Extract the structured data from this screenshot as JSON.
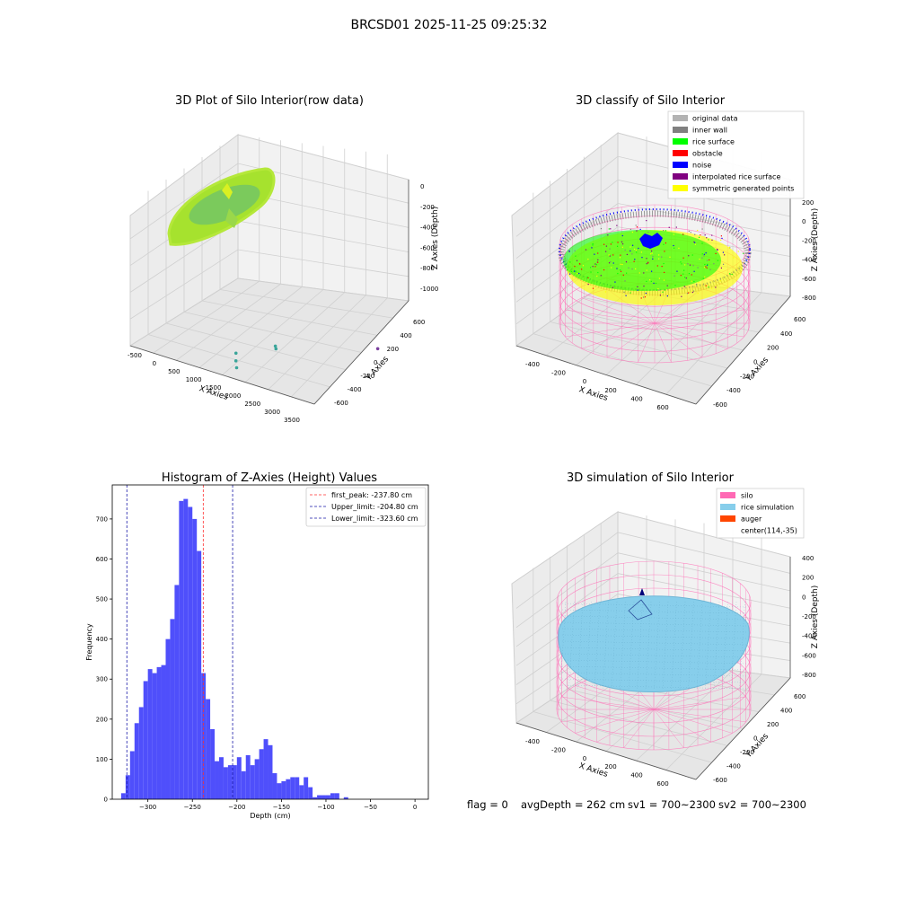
{
  "figure": {
    "suptitle": "BRCSD01 2025-11-25 09:25:32",
    "footer": {
      "flag": "flag = 0",
      "avg_depth": "avgDepth = 262 cm",
      "sv1": "sv1 = 700~2300",
      "sv2": "sv2 = 700~2300"
    }
  },
  "colors": {
    "hist_bar": "#4f4ffb",
    "peak_line": "#ff3030",
    "limit_line": "#1a1aa8",
    "silo_pink": "#ff69b4",
    "rice_sim": "#87ceeb",
    "auger": "#ff4500",
    "pane_left": "#ececec",
    "pane_right": "#f2f2f2",
    "pane_floor": "#e6e6e6",
    "grid": "#d0d0d0"
  },
  "chart_data": [
    {
      "id": "raw",
      "type": "scatter",
      "title": "3D Plot of Silo Interior(row data)",
      "xlabel": "X Axies",
      "ylabel": "Y Axies",
      "zlabel": "Z Axies (Depth)",
      "x_ticks": [
        "-500",
        "0",
        "500",
        "1000",
        "1500",
        "2000",
        "2500",
        "3000",
        "3500"
      ],
      "y_ticks": [
        "-600",
        "-400",
        "-200",
        "0",
        "200",
        "400",
        "600"
      ],
      "z_ticks": [
        "0",
        "-200",
        "-400",
        "-600",
        "-800",
        "-1000"
      ],
      "outlier_points": [
        {
          "x": 1200,
          "y": -250,
          "z": -820
        },
        {
          "x": 1250,
          "y": -280,
          "z": -850
        },
        {
          "x": 1300,
          "y": -300,
          "z": -880
        },
        {
          "x": 1800,
          "y": -100,
          "z": -800
        },
        {
          "x": 1830,
          "y": -110,
          "z": -810
        },
        {
          "x": 3000,
          "y": 500,
          "z": -1050
        }
      ]
    },
    {
      "id": "classify",
      "type": "scatter",
      "title": "3D classify of Silo Interior",
      "xlabel": "X Axies",
      "ylabel": "Y Axies",
      "zlabel": "Z Axies (Depth)",
      "x_ticks": [
        "-400",
        "-200",
        "0",
        "200",
        "400",
        "600"
      ],
      "y_ticks": [
        "-600",
        "-400",
        "-200",
        "0",
        "200",
        "400",
        "600"
      ],
      "z_ticks": [
        "200",
        "0",
        "-200",
        "-400",
        "-600",
        "-800"
      ],
      "legend": [
        {
          "label": "original data",
          "color": "#b3b3b3"
        },
        {
          "label": "inner wall",
          "color": "#808080"
        },
        {
          "label": "rice surface",
          "color": "#00ff00"
        },
        {
          "label": "obstacle",
          "color": "#ff0000"
        },
        {
          "label": "noise",
          "color": "#0000ff"
        },
        {
          "label": "interpolated rice surface",
          "color": "#800080"
        },
        {
          "label": "symmetric generated points",
          "color": "#ffff00"
        }
      ]
    },
    {
      "id": "hist",
      "type": "bar",
      "title": "Histogram of Z-Axies (Height) Values",
      "xlabel": "Depth (cm)",
      "ylabel": "Frequency",
      "xlim": [
        -340,
        15
      ],
      "ylim": [
        0,
        785
      ],
      "x_ticks": [
        -300,
        -250,
        -200,
        -150,
        -100,
        -50,
        0
      ],
      "y_ticks": [
        0,
        100,
        200,
        300,
        400,
        500,
        600,
        700
      ],
      "bin_start": -330,
      "bin_width": 5,
      "values": [
        15,
        60,
        120,
        190,
        230,
        295,
        325,
        315,
        330,
        335,
        400,
        450,
        535,
        745,
        750,
        730,
        700,
        620,
        315,
        250,
        175,
        95,
        105,
        80,
        85,
        85,
        105,
        70,
        110,
        85,
        100,
        125,
        150,
        135,
        65,
        40,
        45,
        50,
        55,
        55,
        35,
        55,
        30,
        5,
        10,
        10,
        10,
        15,
        15,
        0,
        5
      ],
      "vlines": [
        {
          "label": "first_peak: -237.80 cm",
          "value": -237.8,
          "kind": "peak"
        },
        {
          "label": "Upper_limit: -204.80 cm",
          "value": -204.8,
          "kind": "limit"
        },
        {
          "label": "Lower_limit: -323.60 cm",
          "value": -323.6,
          "kind": "limit"
        }
      ]
    },
    {
      "id": "sim",
      "type": "scatter",
      "title": "3D simulation of Silo Interior",
      "xlabel": "X Axies",
      "ylabel": "Y Axies",
      "zlabel": "Z Axies (Depth)",
      "x_ticks": [
        "-400",
        "-200",
        "0",
        "200",
        "400",
        "600"
      ],
      "y_ticks": [
        "-600",
        "-400",
        "-200",
        "0",
        "200",
        "400",
        "600"
      ],
      "z_ticks": [
        "400",
        "200",
        "0",
        "-200",
        "-400",
        "-600",
        "-800"
      ],
      "legend": [
        {
          "label": "silo",
          "color": "#ff69b4"
        },
        {
          "label": "rice simulation",
          "color": "#87ceeb"
        },
        {
          "label": "auger",
          "color": "#ff4500"
        },
        {
          "label": "center(114,-35)",
          "color": ""
        }
      ]
    }
  ]
}
